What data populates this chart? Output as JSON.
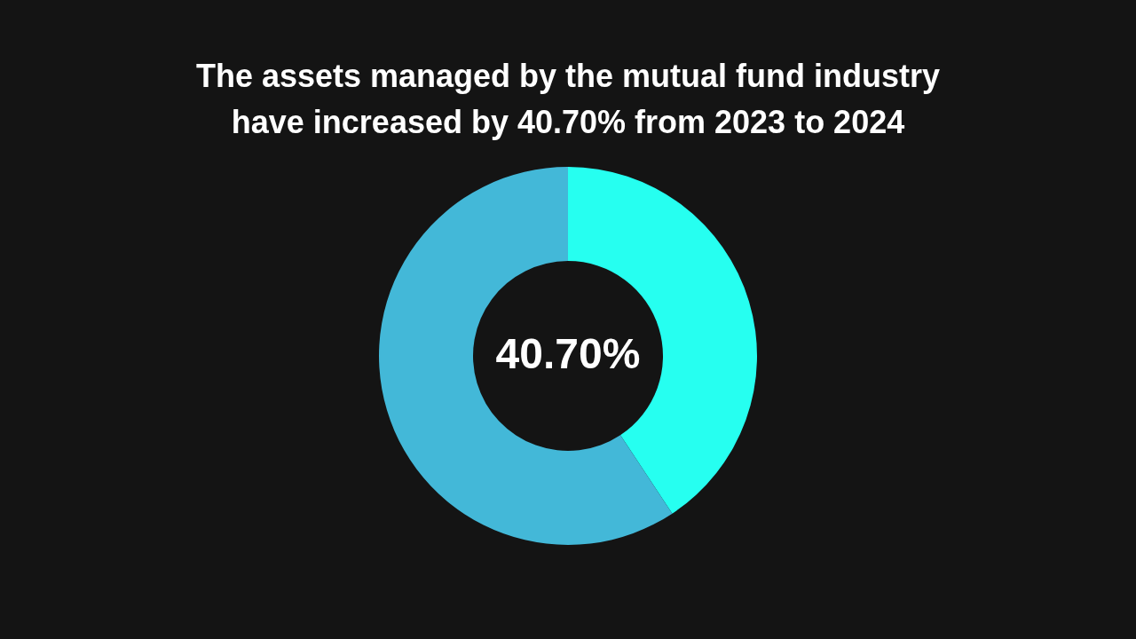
{
  "chart_data": {
    "type": "donut",
    "title": "The assets managed by the mutual fund industry have increased by 40.70% from 2023 to 2024",
    "categories": [
      null,
      null
    ],
    "values": [
      40.7,
      59.3
    ],
    "colors": [
      "#26fff0",
      "#43b8d8"
    ],
    "annotations": [
      "40.70%"
    ]
  }
}
